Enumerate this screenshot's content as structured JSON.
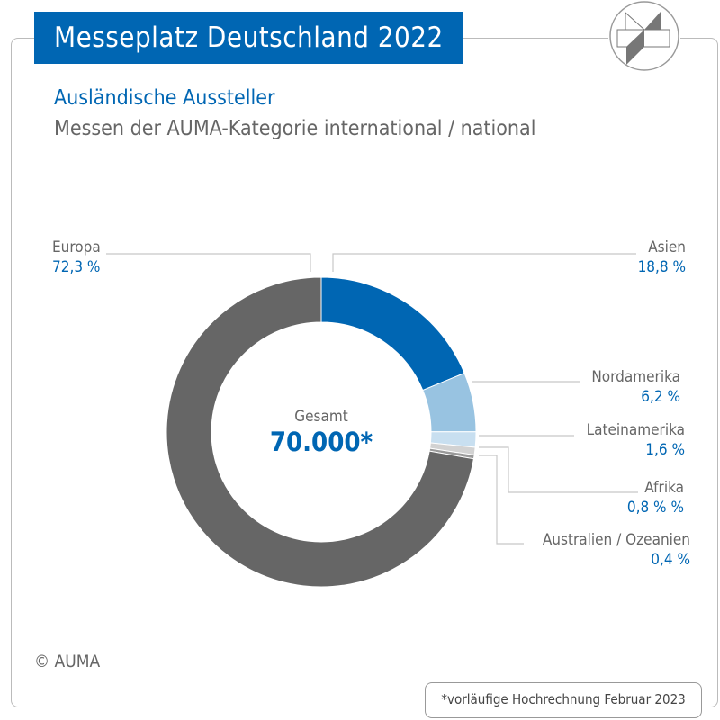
{
  "header": {
    "title": "Messeplatz Deutschland 2022",
    "subtitle": "Ausländische Aussteller",
    "subtitle2": "Messen der AUMA-Kategorie international / national"
  },
  "chart_data": {
    "type": "pie",
    "donut": true,
    "center_label": "Gesamt",
    "center_value": "70.000*",
    "slices": [
      {
        "name": "Asien",
        "value": 18.8,
        "label": "18,8 %",
        "color": "#0066b3"
      },
      {
        "name": "Nordamerika",
        "value": 6.2,
        "label": "6,2 %",
        "color": "#98c3e1"
      },
      {
        "name": "Lateinamerika",
        "value": 1.6,
        "label": "1,6 %",
        "color": "#c8dff0"
      },
      {
        "name": "Afrika",
        "value": 0.8,
        "label": "0,8 % %",
        "color": "#d2d2d2"
      },
      {
        "name": "Australien / Ozeanien",
        "value": 0.4,
        "label": "0,4 %",
        "color": "#9a9a9a"
      },
      {
        "name": "Europa",
        "value": 72.3,
        "label": "72,3 %",
        "color": "#666666"
      }
    ]
  },
  "copyright": "© AUMA",
  "footnote": "*vorläufige Hochrechnung Februar 2023"
}
